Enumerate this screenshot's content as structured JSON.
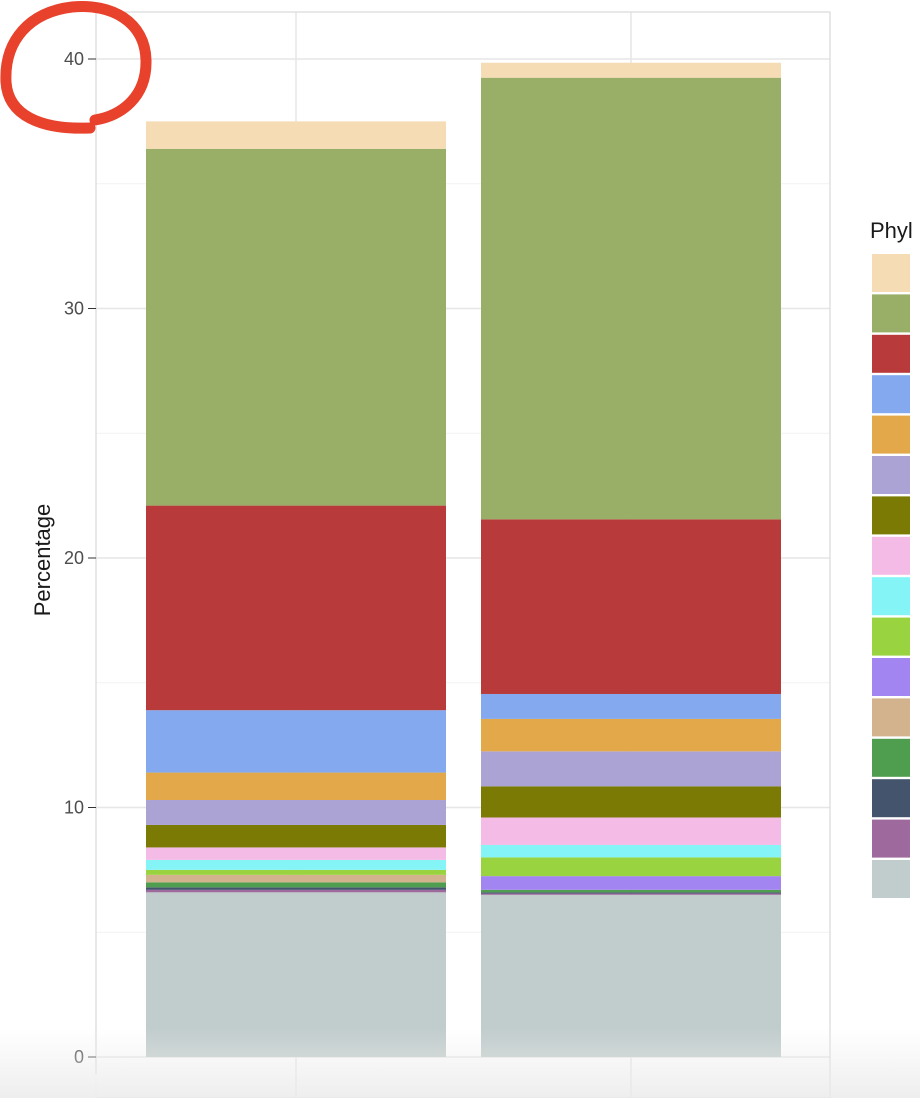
{
  "chart_data": {
    "type": "bar",
    "stacked": true,
    "categories": [
      "",
      ""
    ],
    "ylabel": "Percentage",
    "ylim": [
      0,
      42
    ],
    "y_ticks": [
      0,
      10,
      20,
      30,
      40
    ],
    "y_tick_labels": [
      "0",
      "10",
      "20",
      "30",
      "40"
    ],
    "grid": true,
    "legend": {
      "title": "Phyl",
      "position": "right",
      "entries_colors": [
        "#f5dcb4",
        "#99ae66",
        "#b83a3a",
        "#84a9ee",
        "#e2a84a",
        "#aba3d4",
        "#7b7a04",
        "#f3bbe5",
        "#85f4f7",
        "#99d33f",
        "#a385f1",
        "#d2b38e",
        "#4f9e4f",
        "#44546d",
        "#9e6a9e",
        "#c1cccc"
      ]
    },
    "series": [
      {
        "color": "#c1cccc",
        "values": [
          6.6,
          6.5
        ]
      },
      {
        "color": "#9e6a9e",
        "values": [
          0.1,
          0.05
        ]
      },
      {
        "color": "#44546d",
        "values": [
          0.1,
          0.05
        ]
      },
      {
        "color": "#4f9e4f",
        "values": [
          0.2,
          0.1
        ]
      },
      {
        "color": "#d2b38e",
        "values": [
          0.3,
          0.0
        ]
      },
      {
        "color": "#a385f1",
        "values": [
          0.0,
          0.55
        ]
      },
      {
        "color": "#99d33f",
        "values": [
          0.2,
          0.75
        ]
      },
      {
        "color": "#85f4f7",
        "values": [
          0.4,
          0.5
        ]
      },
      {
        "color": "#f3bbe5",
        "values": [
          0.5,
          1.1
        ]
      },
      {
        "color": "#7b7a04",
        "values": [
          0.9,
          1.25
        ]
      },
      {
        "color": "#aba3d4",
        "values": [
          1.0,
          1.4
        ]
      },
      {
        "color": "#e2a84a",
        "values": [
          1.1,
          1.3
        ]
      },
      {
        "color": "#84a9ee",
        "values": [
          2.5,
          1.0
        ]
      },
      {
        "color": "#b83a3a",
        "values": [
          8.2,
          7.0
        ]
      },
      {
        "color": "#99ae66",
        "values": [
          14.3,
          17.7
        ]
      },
      {
        "color": "#f5dcb4",
        "values": [
          1.1,
          0.6
        ]
      }
    ]
  },
  "annotation": {
    "color": "#e8412c"
  }
}
